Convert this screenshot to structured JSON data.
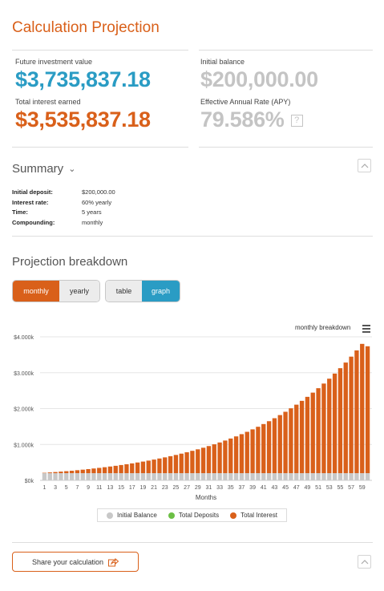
{
  "title": "Calculation Projection",
  "stats": {
    "future_value_label": "Future investment value",
    "future_value": "$3,735,837.18",
    "interest_label": "Total interest earned",
    "interest": "$3,535,837.18",
    "initial_label": "Initial balance",
    "initial": "$200,000.00",
    "apy_label": "Effective Annual Rate (APY)",
    "apy": "79.586%",
    "help_icon": "?"
  },
  "summary": {
    "heading": "Summary",
    "rows": [
      {
        "label": "Initial deposit:",
        "value": "$200,000.00"
      },
      {
        "label": "Interest rate:",
        "value": "60% yearly"
      },
      {
        "label": "Time:",
        "value": "5 years"
      },
      {
        "label": "Compounding:",
        "value": "monthly"
      }
    ]
  },
  "projection": {
    "heading": "Projection breakdown",
    "period_toggle": {
      "monthly": "monthly",
      "yearly": "yearly",
      "selected": "monthly"
    },
    "view_toggle": {
      "table": "table",
      "graph": "graph",
      "selected": "graph"
    }
  },
  "chart_header": "monthly breakdown",
  "share_label": "Share your calculation",
  "colors": {
    "orange": "#d9601a",
    "teal": "#2a9cc4",
    "initial_balance": "#c8c8c8",
    "total_deposits": "#6cbf45",
    "total_interest": "#d9601a"
  },
  "chart_data": {
    "type": "bar",
    "stacked": true,
    "xlabel": "Months",
    "ylabel": "",
    "ylim": [
      0,
      4000000
    ],
    "yticks": [
      0,
      1000000,
      2000000,
      3000000,
      4000000
    ],
    "ytick_labels": [
      "$0k",
      "$1.000k",
      "$2.000k",
      "$3.000k",
      "$4.000k"
    ],
    "xtick_labels": [
      "1",
      "3",
      "5",
      "7",
      "9",
      "11",
      "13",
      "15",
      "17",
      "19",
      "21",
      "23",
      "25",
      "27",
      "29",
      "31",
      "33",
      "35",
      "37",
      "39",
      "41",
      "43",
      "45",
      "47",
      "49",
      "51",
      "53",
      "55",
      "57",
      "59"
    ],
    "categories": [
      1,
      2,
      3,
      4,
      5,
      6,
      7,
      8,
      9,
      10,
      11,
      12,
      13,
      14,
      15,
      16,
      17,
      18,
      19,
      20,
      21,
      22,
      23,
      24,
      25,
      26,
      27,
      28,
      29,
      30,
      31,
      32,
      33,
      34,
      35,
      36,
      37,
      38,
      39,
      40,
      41,
      42,
      43,
      44,
      45,
      46,
      47,
      48,
      49,
      50,
      51,
      52,
      53,
      54,
      55,
      56,
      57,
      58,
      59,
      60
    ],
    "series": [
      {
        "name": "Initial Balance",
        "color": "#c8c8c8",
        "values": [
          200000,
          200000,
          200000,
          200000,
          200000,
          200000,
          200000,
          200000,
          200000,
          200000,
          200000,
          200000,
          200000,
          200000,
          200000,
          200000,
          200000,
          200000,
          200000,
          200000,
          200000,
          200000,
          200000,
          200000,
          200000,
          200000,
          200000,
          200000,
          200000,
          200000,
          200000,
          200000,
          200000,
          200000,
          200000,
          200000,
          200000,
          200000,
          200000,
          200000,
          200000,
          200000,
          200000,
          200000,
          200000,
          200000,
          200000,
          200000,
          200000,
          200000,
          200000,
          200000,
          200000,
          200000,
          200000,
          200000,
          200000,
          200000,
          200000,
          200000
        ]
      },
      {
        "name": "Total Deposits",
        "color": "#6cbf45",
        "values": [
          0,
          0,
          0,
          0,
          0,
          0,
          0,
          0,
          0,
          0,
          0,
          0,
          0,
          0,
          0,
          0,
          0,
          0,
          0,
          0,
          0,
          0,
          0,
          0,
          0,
          0,
          0,
          0,
          0,
          0,
          0,
          0,
          0,
          0,
          0,
          0,
          0,
          0,
          0,
          0,
          0,
          0,
          0,
          0,
          0,
          0,
          0,
          0,
          0,
          0,
          0,
          0,
          0,
          0,
          0,
          0,
          0,
          0,
          0,
          0
        ]
      },
      {
        "name": "Total Interest",
        "color": "#d9601a",
        "values": [
          10000,
          20500,
          31525,
          43101,
          55256,
          67019,
          82420,
          97491,
          113366,
          130034,
          147536,
          165913,
          185209,
          205469,
          226743,
          249080,
          272534,
          297161,
          323019,
          350170,
          378678,
          408612,
          440043,
          473045,
          507697,
          544082,
          582286,
          622401,
          664521,
          708747,
          755184,
          803943,
          855141,
          908898,
          965343,
          1024610,
          1086841,
          1152183,
          1220792,
          1292832,
          1368473,
          1447897,
          1531292,
          1618856,
          1710799,
          1807339,
          1908706,
          2015141,
          2126898,
          2244243,
          2367455,
          2496828,
          2632669,
          2775303,
          2925068,
          3082321,
          3247437,
          3420809,
          3602849,
          3535837
        ]
      }
    ]
  },
  "legend": [
    "Initial Balance",
    "Total Deposits",
    "Total Interest"
  ]
}
